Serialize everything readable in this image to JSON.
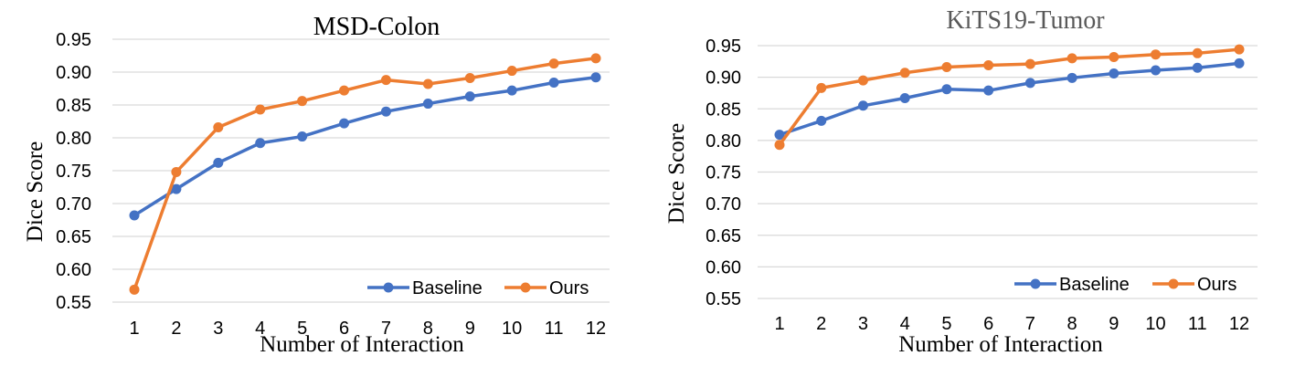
{
  "colors": {
    "baseline": "#4472c4",
    "ours": "#ed7d31",
    "grid": "#d9d9d9"
  },
  "chart_data": [
    {
      "type": "line",
      "title": "MSD-Colon",
      "xlabel": "Number of Interaction",
      "ylabel": "Dice Score",
      "x": [
        1,
        2,
        3,
        4,
        5,
        6,
        7,
        8,
        9,
        10,
        11,
        12
      ],
      "x_tick_labels": [
        "1",
        "2",
        "3",
        "4",
        "5",
        "6",
        "7",
        "8",
        "9",
        "10",
        "11",
        "12"
      ],
      "y_tick_labels": [
        "0.95",
        "0.90",
        "0.85",
        "0.80",
        "0.75",
        "0.70",
        "0.65",
        "0.60",
        "0.55"
      ],
      "ylim": [
        0.55,
        0.95
      ],
      "grid": true,
      "legend_position": "bottom-right",
      "series": [
        {
          "name": "Baseline",
          "values": [
            0.682,
            0.722,
            0.762,
            0.792,
            0.802,
            0.822,
            0.84,
            0.852,
            0.863,
            0.872,
            0.884,
            0.892
          ]
        },
        {
          "name": "Ours",
          "values": [
            0.569,
            0.748,
            0.816,
            0.843,
            0.856,
            0.872,
            0.888,
            0.882,
            0.891,
            0.902,
            0.913,
            0.921
          ]
        }
      ]
    },
    {
      "type": "line",
      "title": "KiTS19-Tumor",
      "xlabel": "Number of Interaction",
      "ylabel": "Dice Score",
      "x": [
        1,
        2,
        3,
        4,
        5,
        6,
        7,
        8,
        9,
        10,
        11,
        12
      ],
      "x_tick_labels": [
        "1",
        "2",
        "3",
        "4",
        "5",
        "6",
        "7",
        "8",
        "9",
        "10",
        "11",
        "12"
      ],
      "y_tick_labels": [
        "0.95",
        "0.90",
        "0.85",
        "0.80",
        "0.75",
        "0.70",
        "0.65",
        "0.60",
        "0.55"
      ],
      "ylim": [
        0.55,
        0.95
      ],
      "grid": true,
      "legend_position": "bottom-right",
      "series": [
        {
          "name": "Baseline",
          "values": [
            0.809,
            0.831,
            0.855,
            0.867,
            0.881,
            0.879,
            0.891,
            0.899,
            0.906,
            0.911,
            0.915,
            0.922
          ]
        },
        {
          "name": "Ours",
          "values": [
            0.793,
            0.883,
            0.895,
            0.907,
            0.916,
            0.919,
            0.921,
            0.93,
            0.932,
            0.936,
            0.938,
            0.944
          ]
        }
      ]
    }
  ]
}
